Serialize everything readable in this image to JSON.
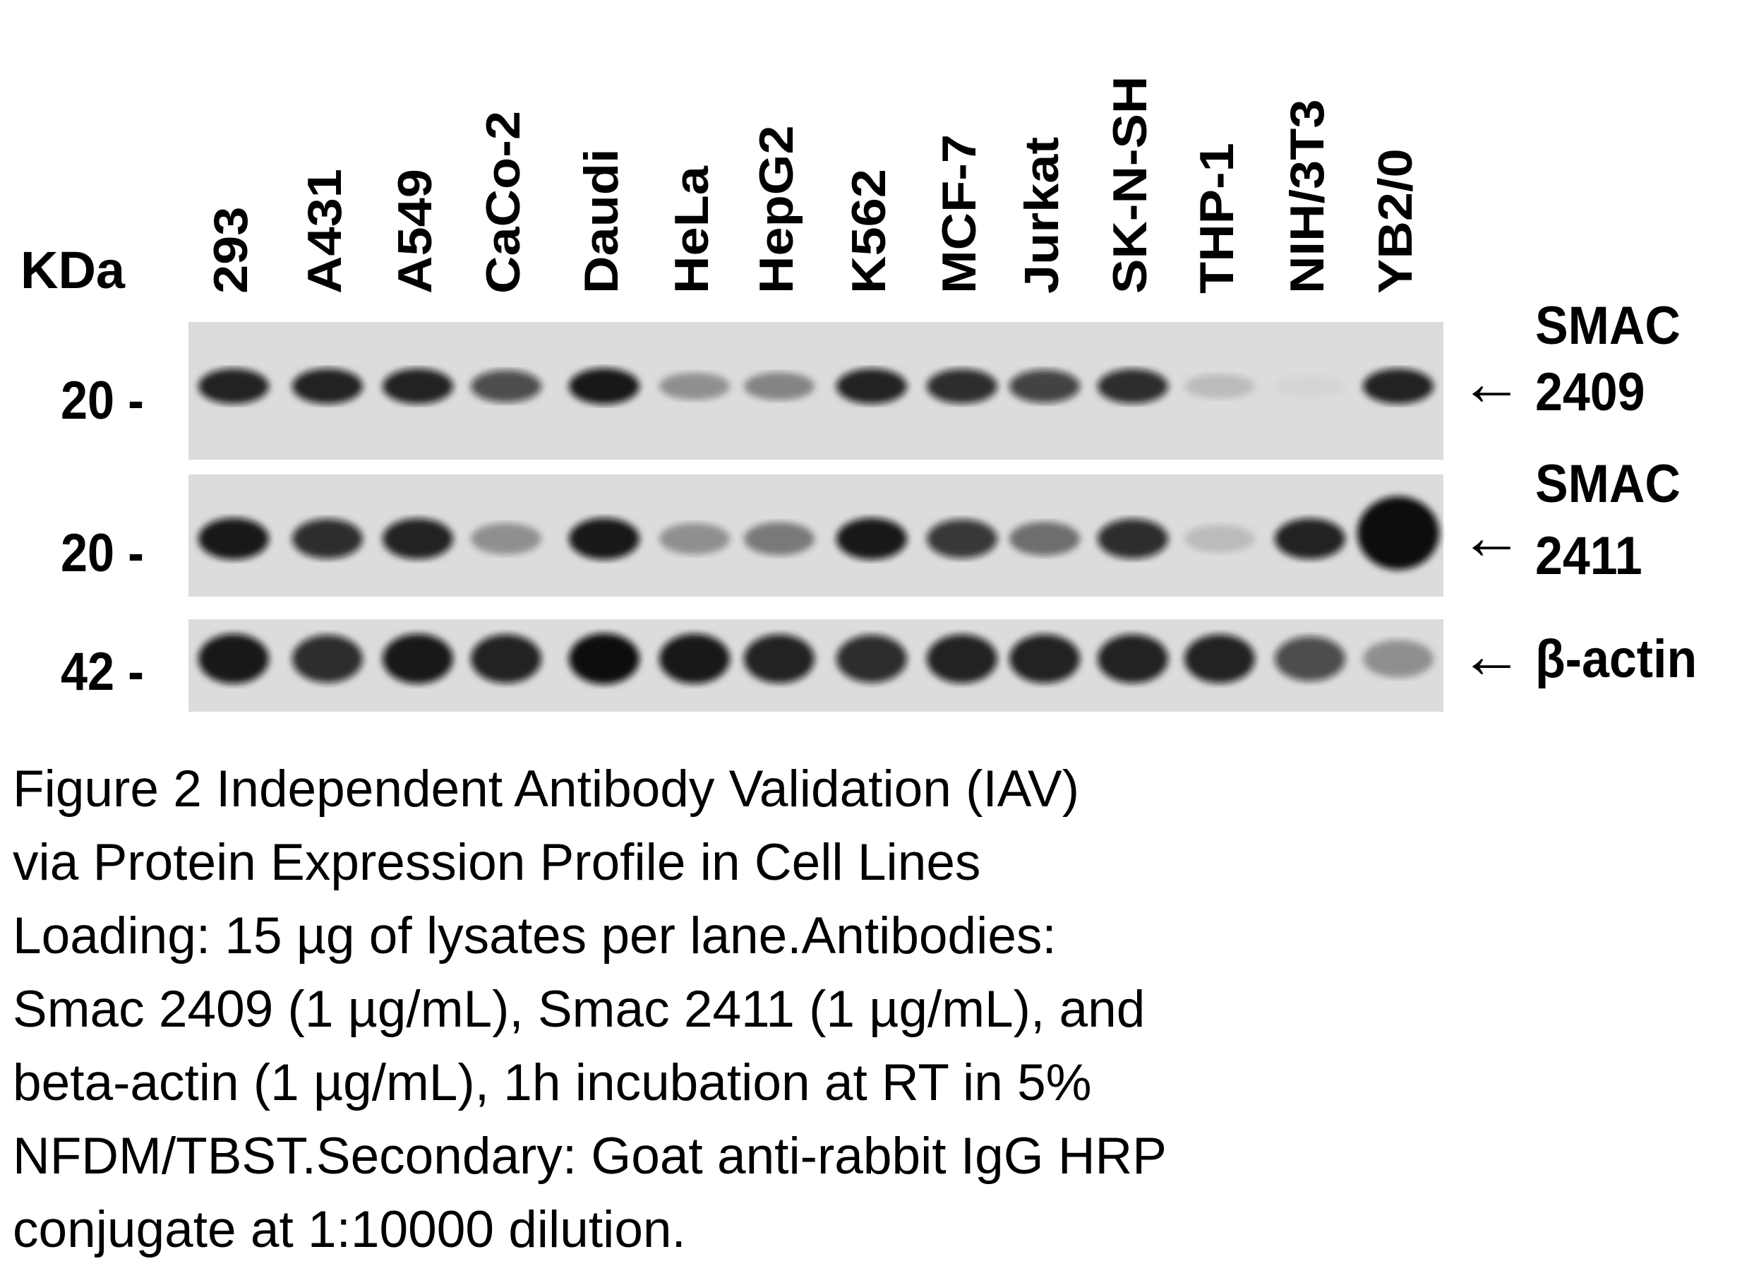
{
  "figure": {
    "kda_label": "KDa",
    "lanes": [
      "293",
      "A431",
      "A549",
      "CaCo-2",
      "Daudi",
      "HeLa",
      "HepG2",
      "K562",
      "MCF-7",
      "Jurkat",
      "SK-N-SH",
      "THP-1",
      "NIH/3T3",
      "YB2/0"
    ],
    "panels": [
      {
        "marker": "20 -",
        "label_line1": "SMAC",
        "label_line2": "2409",
        "arrow": "←",
        "band_intensity": [
          0.9,
          0.9,
          0.9,
          0.7,
          0.95,
          0.35,
          0.4,
          0.9,
          0.85,
          0.75,
          0.85,
          0.15,
          0.03,
          0.9
        ]
      },
      {
        "marker": "20 -",
        "label_line1": "SMAC",
        "label_line2": "2411",
        "arrow": "←",
        "band_intensity": [
          0.95,
          0.85,
          0.9,
          0.35,
          0.95,
          0.35,
          0.45,
          0.95,
          0.8,
          0.5,
          0.85,
          0.15,
          0.9,
          1.0
        ]
      },
      {
        "marker": "42 -",
        "label_line1": "β-actin",
        "label_line2": "",
        "arrow": "←",
        "band_intensity": [
          0.95,
          0.85,
          0.95,
          0.9,
          1.0,
          0.95,
          0.9,
          0.85,
          0.9,
          0.9,
          0.9,
          0.9,
          0.7,
          0.35
        ]
      }
    ],
    "membrane_color": "#dcdcdc",
    "band_color": "#0a0a0a"
  },
  "caption": [
    "Figure 2 Independent Antibody Validation (IAV)",
    "via Protein Expression Profile in Cell Lines",
    "Loading: 15 µg of lysates per lane.Antibodies:",
    "Smac 2409 (1 µg/mL), Smac 2411 (1 µg/mL), and",
    "beta-actin (1 µg/mL), 1h incubation at RT in 5%",
    "NFDM/TBST.Secondary: Goat anti-rabbit IgG HRP",
    "conjugate at 1:10000 dilution."
  ]
}
